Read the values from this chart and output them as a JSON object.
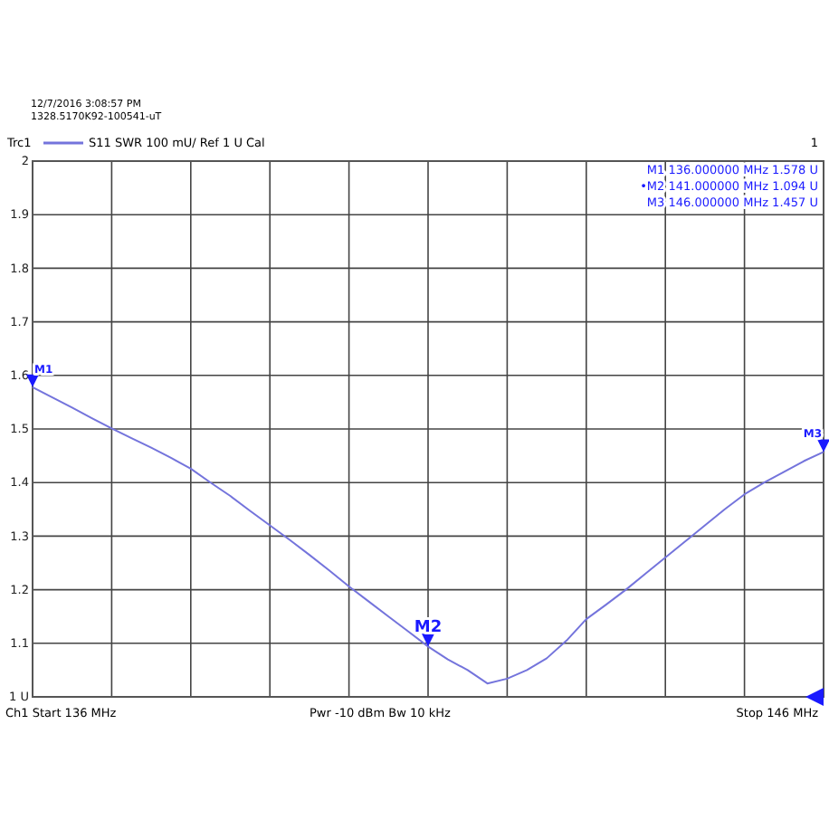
{
  "chart_data": {
    "type": "line",
    "categories": [
      null,
      null,
      null,
      null,
      null,
      null,
      null,
      null,
      null,
      null,
      null,
      null,
      null,
      null,
      null,
      null,
      null,
      null,
      null,
      null,
      null,
      null,
      null,
      null,
      null,
      null,
      null,
      null,
      null,
      null,
      null,
      null,
      null,
      null,
      null,
      null,
      null,
      null,
      null,
      null,
      null
    ],
    "series": [
      {
        "name": "Trc1",
        "color": "#7474dc",
        "values": [
          1.578,
          1.559,
          1.54,
          1.52,
          1.501,
          1.483,
          1.465,
          1.446,
          1.426,
          1.4,
          1.375,
          1.347,
          1.32,
          1.293,
          1.265,
          1.236,
          1.206,
          1.178,
          1.15,
          1.122,
          1.094,
          1.07,
          1.05,
          1.025,
          1.034,
          1.05,
          1.072,
          1.105,
          1.145,
          1.172,
          1.2,
          1.23,
          1.26,
          1.29,
          1.32,
          1.35,
          1.378,
          1.4,
          1.42,
          1.44,
          1.457
        ]
      }
    ],
    "ylim": [
      1,
      2
    ],
    "yticks": [
      {
        "value": 1,
        "label": "1 U"
      },
      {
        "value": 1.1,
        "label": "1.1"
      },
      {
        "value": 1.2,
        "label": "1.2"
      },
      {
        "value": 1.3,
        "label": "1.3"
      },
      {
        "value": 1.4,
        "label": "1.4"
      },
      {
        "value": 1.5,
        "label": "1.5"
      },
      {
        "value": 1.6,
        "label": "1.6"
      },
      {
        "value": 1.7,
        "label": "1.7"
      },
      {
        "value": 1.8,
        "label": "1.8"
      },
      {
        "value": 1.9,
        "label": "1.9"
      },
      {
        "value": 2,
        "label": "2"
      }
    ],
    "tick_labels": "y",
    "grid": true,
    "legend": "top left",
    "marker": "none",
    "line_style": "solid",
    "annotations": [
      "12/7/2016 3:08:57 PM",
      "1328.5170K92-100541-uT",
      "S11  SWR  100 mU/ Ref 1 U  Cal",
      "1",
      "M1  136.000000  MHz  1.578 U",
      "•M2  141.000000  MHz  1.094 U",
      "M3  146.000000  MHz  1.457 U",
      "Ch1  Start  136 MHz",
      "Pwr  -10 dBm  Bw  10 kHz",
      "Stop  146 MHz",
      {
        "text": "M1",
        "y": 1.578
      },
      {
        "text": "M2",
        "y": 1.094
      },
      {
        "text": "M3",
        "y": 1.457
      }
    ]
  }
}
